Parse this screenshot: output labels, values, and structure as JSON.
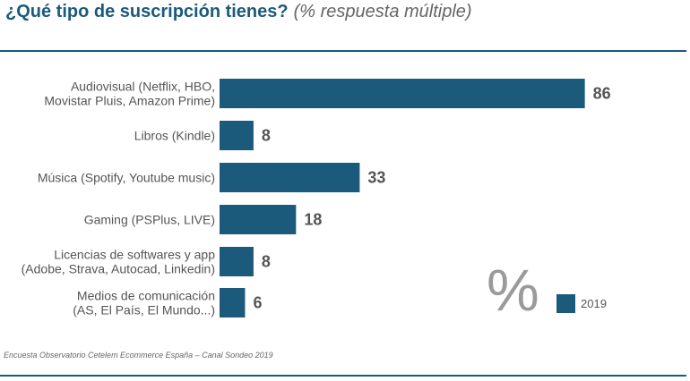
{
  "header": {
    "title": "¿Qué tipo de suscripción tienes?",
    "subtitle": "(% respuesta múltiple)"
  },
  "source": "Encuesta Observatorio Cetelem Ecommerce España – Canal Sondeo 2019",
  "percent_symbol": "%",
  "legend": {
    "label": "2019"
  },
  "colors": {
    "bar": "#1c5a7c",
    "accent": "#1c5a7c"
  },
  "chart_data": {
    "type": "bar",
    "orientation": "horizontal",
    "categories": [
      [
        "Audiovisual (Netflix, HBO,",
        "Movistar Pluis, Amazon Prime)"
      ],
      [
        "Libros (Kindle)"
      ],
      [
        "Música (Spotify, Youtube music)"
      ],
      [
        "Gaming (PSPlus, LIVE)"
      ],
      [
        "Licencias de softwares y app",
        "(Adobe, Strava, Autocad, Linkedin)"
      ],
      [
        "Medios de comunicación",
        "(AS, El País, El Mundo...)"
      ]
    ],
    "series": [
      {
        "name": "2019",
        "values": [
          86,
          8,
          33,
          18,
          8,
          6
        ]
      }
    ],
    "xlim": [
      0,
      100
    ],
    "grid": false,
    "legend_position": "bottom-right"
  }
}
